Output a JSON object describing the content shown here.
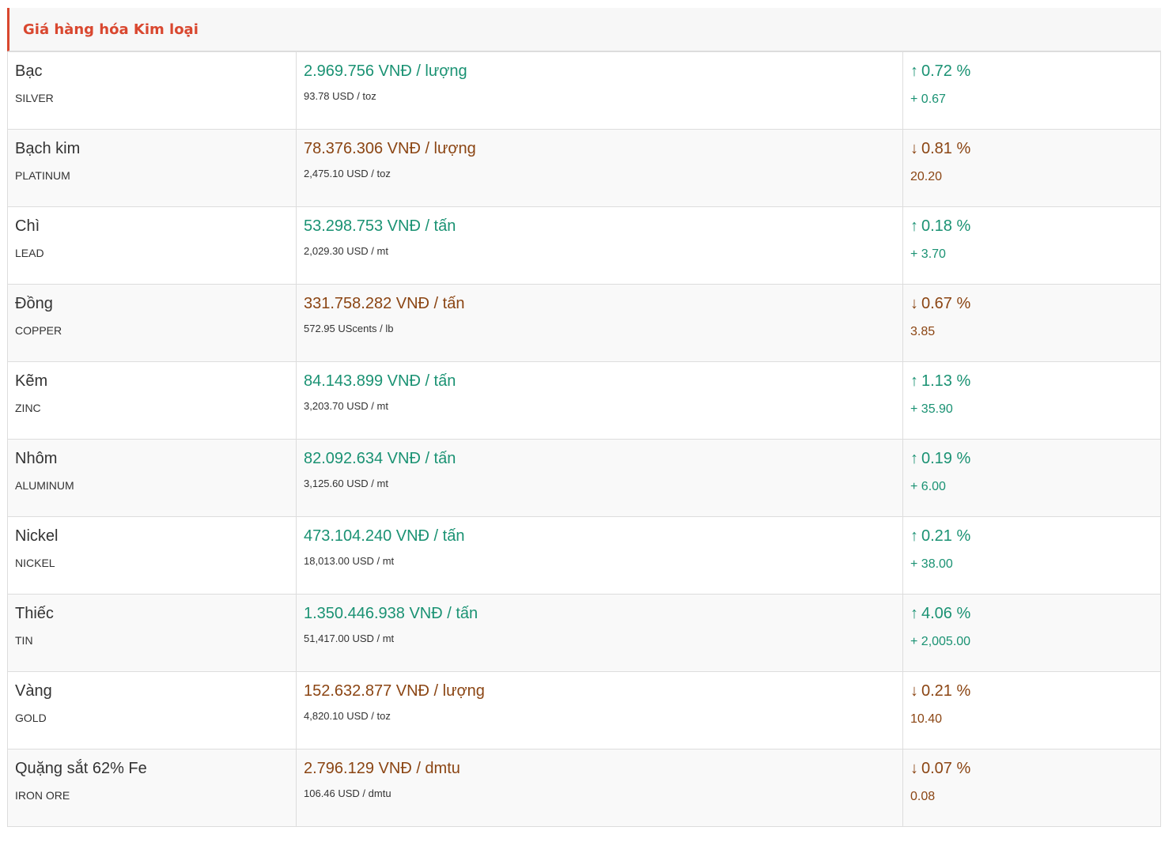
{
  "title": "Giá hàng hóa Kim loại",
  "colors": {
    "up": "#1a9273",
    "down": "#8b4513",
    "accent": "#d9472f"
  },
  "rows": [
    {
      "name": "Bạc",
      "code": "SILVER",
      "vnd": "2.969.756 VNĐ / lượng",
      "usd": "93.78 USD / toz",
      "dir": "up",
      "pct": "0.72 %",
      "chg": "+ 0.67"
    },
    {
      "name": "Bạch kim",
      "code": "PLATINUM",
      "vnd": "78.376.306 VNĐ / lượng",
      "usd": "2,475.10 USD / toz",
      "dir": "down",
      "pct": "0.81 %",
      "chg": "20.20"
    },
    {
      "name": "Chì",
      "code": "LEAD",
      "vnd": "53.298.753 VNĐ / tấn",
      "usd": "2,029.30 USD / mt",
      "dir": "up",
      "pct": "0.18 %",
      "chg": "+ 3.70"
    },
    {
      "name": "Đồng",
      "code": "COPPER",
      "vnd": "331.758.282 VNĐ / tấn",
      "usd": "572.95 UScents / lb",
      "dir": "down",
      "pct": "0.67 %",
      "chg": "3.85"
    },
    {
      "name": "Kẽm",
      "code": "ZINC",
      "vnd": "84.143.899 VNĐ / tấn",
      "usd": "3,203.70 USD / mt",
      "dir": "up",
      "pct": "1.13 %",
      "chg": "+ 35.90"
    },
    {
      "name": "Nhôm",
      "code": "ALUMINUM",
      "vnd": "82.092.634 VNĐ / tấn",
      "usd": "3,125.60 USD / mt",
      "dir": "up",
      "pct": "0.19 %",
      "chg": "+ 6.00"
    },
    {
      "name": "Nickel",
      "code": "NICKEL",
      "vnd": "473.104.240 VNĐ / tấn",
      "usd": "18,013.00 USD / mt",
      "dir": "up",
      "pct": "0.21 %",
      "chg": "+ 38.00"
    },
    {
      "name": "Thiếc",
      "code": "TIN",
      "vnd": "1.350.446.938 VNĐ / tấn",
      "usd": "51,417.00 USD / mt",
      "dir": "up",
      "pct": "4.06 %",
      "chg": "+ 2,005.00"
    },
    {
      "name": "Vàng",
      "code": "GOLD",
      "vnd": "152.632.877 VNĐ / lượng",
      "usd": "4,820.10 USD / toz",
      "dir": "down",
      "pct": "0.21 %",
      "chg": "10.40"
    },
    {
      "name": "Quặng sắt 62% Fe",
      "code": "IRON ORE",
      "vnd": "2.796.129 VNĐ / dmtu",
      "usd": "106.46 USD / dmtu",
      "dir": "down",
      "pct": "0.07 %",
      "chg": "0.08"
    }
  ]
}
